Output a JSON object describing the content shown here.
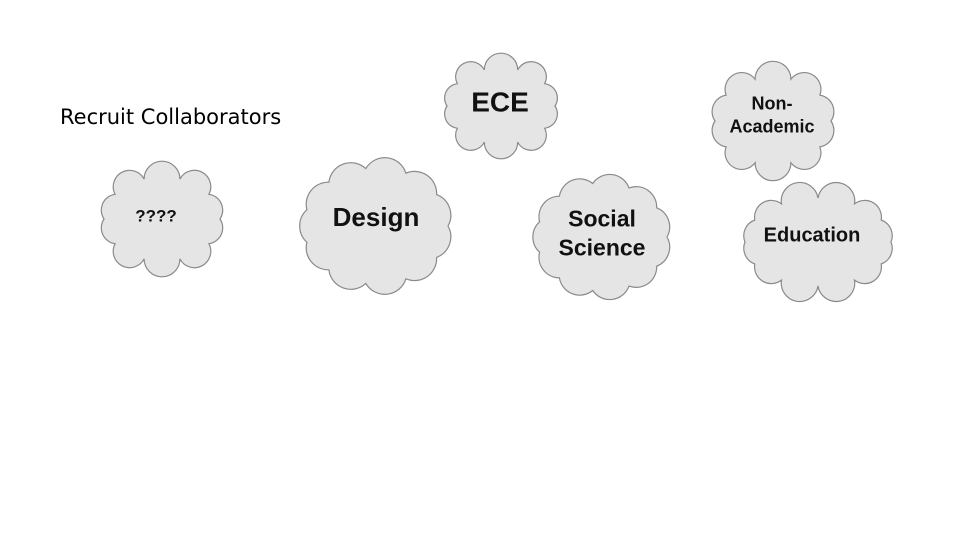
{
  "slide": {
    "title": "Recruit Collaborators"
  },
  "clouds": [
    {
      "id": "unknown",
      "label": "????",
      "color": "#e5e5e5"
    },
    {
      "id": "design",
      "label": "Design",
      "color": "#e5e5e5"
    },
    {
      "id": "ece",
      "label": "ECE",
      "color": "#e5e5e5"
    },
    {
      "id": "social-science",
      "line1": "Social",
      "line2": "Science",
      "color": "#e5e5e5"
    },
    {
      "id": "non-academic",
      "line1": "Non-",
      "line2": "Academic",
      "color": "#e5e5e5"
    },
    {
      "id": "education",
      "label": "Education",
      "color": "#e5e5e5"
    }
  ]
}
